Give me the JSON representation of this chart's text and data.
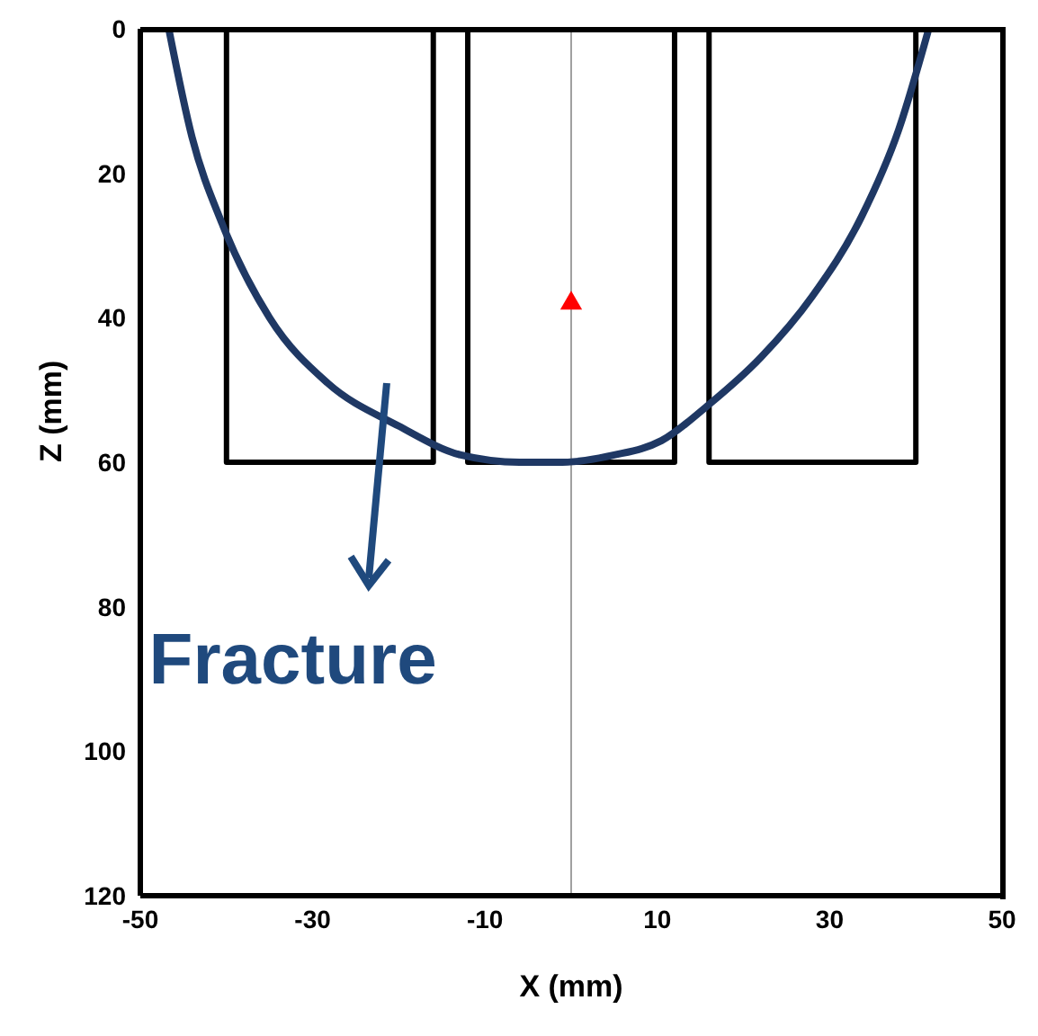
{
  "chart_data": {
    "type": "line",
    "xlabel": "X (mm)",
    "ylabel": "Z (mm)",
    "xlim": [
      -50,
      50
    ],
    "xticks": [
      -50,
      -30,
      -10,
      10,
      30,
      50
    ],
    "ylim": [
      120,
      0
    ],
    "yticks": [
      0,
      20,
      40,
      60,
      80,
      100,
      120
    ],
    "grid": false,
    "legend": false,
    "ref_lines": [
      {
        "axis": "x",
        "value": 0,
        "color": "#a0a0a0"
      }
    ],
    "annotations": [
      "Fracture"
    ],
    "series": [
      {
        "type": "line",
        "color": "#000000",
        "x": [
          -40,
          -40,
          -16,
          -16
        ],
        "values": [
          0,
          60,
          60,
          0
        ],
        "marker": "none"
      },
      {
        "type": "line",
        "color": "#000000",
        "x": [
          -12,
          -12,
          12,
          12
        ],
        "values": [
          0,
          60,
          60,
          0
        ],
        "marker": "none"
      },
      {
        "type": "line",
        "color": "#000000",
        "x": [
          16,
          16,
          40,
          40
        ],
        "values": [
          0,
          60,
          60,
          0
        ],
        "marker": "none"
      },
      {
        "type": "line",
        "color": "#1f3864",
        "x": [
          -46.7,
          -44,
          -40.5,
          -35,
          -28.3,
          -20,
          -12.8,
          -6,
          -1,
          5,
          10.5,
          16,
          22,
          28,
          33.7,
          38,
          41.5
        ],
        "values": [
          0,
          15,
          27,
          40,
          49,
          55,
          59,
          60,
          60,
          59,
          57,
          52,
          45.5,
          37,
          26,
          14,
          0
        ],
        "marker": "none"
      },
      {
        "type": "scatter",
        "color": "#ff0000",
        "x": [
          0
        ],
        "values": [
          38
        ],
        "marker": "triangle"
      }
    ]
  }
}
